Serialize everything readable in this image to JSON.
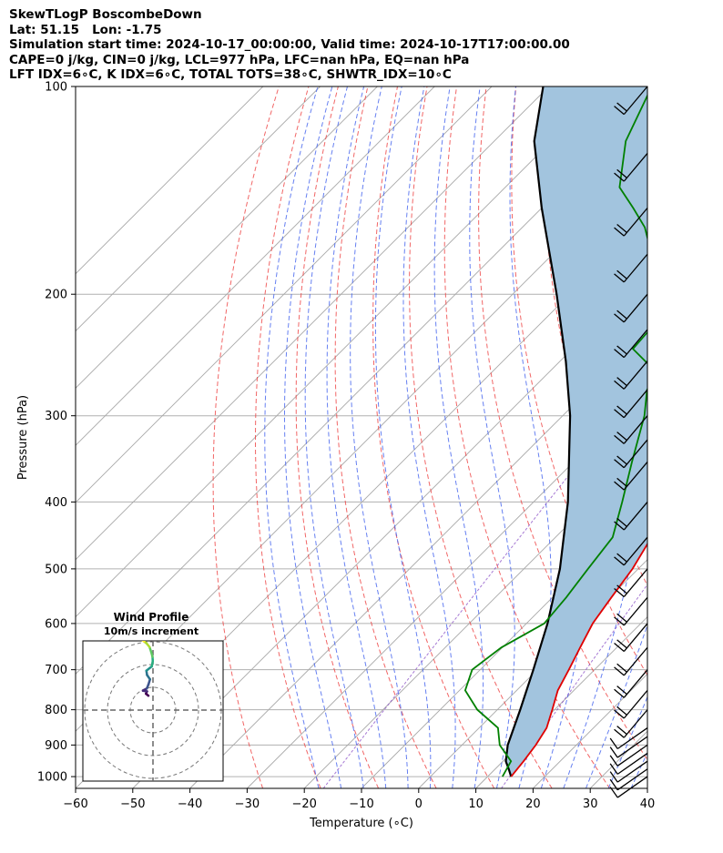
{
  "header": {
    "title": "SkewTLogP BoscombeDown",
    "location": "Lat: 51.15   Lon: -1.75",
    "times": "Simulation start time: 2024-10-17_00:00:00, Valid time: 2024-10-17T17:00:00.00",
    "params": "CAPE=0 j/kg, CIN=0 j/kg, LCL=977 hPa, LFC=nan hPa, EQ=nan hPa",
    "indices": "LFT IDX=6∘C, K IDX=6∘C, TOTAL TOTS=38∘C, SHWTR_IDX=10∘C"
  },
  "chart_data": {
    "type": "skewt",
    "xlabel": "Temperature (∘C)",
    "ylabel": "Pressure (hPa)",
    "xlim": [
      -60,
      40
    ],
    "ylim": [
      1040,
      100
    ],
    "x_ticks": [
      "−60",
      "−50",
      "−40",
      "−30",
      "−20",
      "−10",
      "0",
      "10",
      "20",
      "30",
      "40"
    ],
    "y_ticks": [
      100,
      200,
      300,
      400,
      500,
      600,
      700,
      800,
      900,
      1000
    ],
    "series": [
      {
        "color": "#e00000",
        "points": [
          [
            14.1,
            1000
          ],
          [
            13.6,
            950
          ],
          [
            12.9,
            900
          ],
          [
            11.8,
            850
          ],
          [
            9.6,
            800
          ],
          [
            7.2,
            750
          ],
          [
            5.5,
            700
          ],
          [
            3.6,
            650
          ],
          [
            1.6,
            600
          ],
          [
            0.3,
            550
          ],
          [
            -1.0,
            500
          ],
          [
            -3.2,
            450
          ],
          [
            -6.2,
            400
          ],
          [
            -11.6,
            350
          ],
          [
            -17.3,
            300
          ],
          [
            -22.8,
            270
          ],
          [
            -24.8,
            250
          ],
          [
            -25.2,
            230
          ],
          [
            -25.3,
            220
          ],
          [
            -27.8,
            210
          ],
          [
            -33.4,
            200
          ],
          [
            -37.0,
            190
          ],
          [
            -39.9,
            180
          ],
          [
            -43.5,
            170
          ],
          [
            -46.5,
            160
          ],
          [
            -49.5,
            150
          ],
          [
            -52.0,
            140
          ],
          [
            -54.3,
            130
          ],
          [
            -57.0,
            120
          ],
          [
            -58.5,
            110
          ],
          [
            -59.5,
            100
          ]
        ]
      },
      {
        "color": "#008000",
        "points": [
          [
            12.6,
            1000
          ],
          [
            11.4,
            950
          ],
          [
            6.6,
            900
          ],
          [
            3.3,
            850
          ],
          [
            -3.5,
            800
          ],
          [
            -9.0,
            750
          ],
          [
            -11.4,
            700
          ],
          [
            -10.2,
            650
          ],
          [
            -6.9,
            600
          ],
          [
            -7.6,
            550
          ],
          [
            -8.8,
            500
          ],
          [
            -10.0,
            450
          ],
          [
            -14.5,
            400
          ],
          [
            -19.8,
            350
          ],
          [
            -25.7,
            300
          ],
          [
            -29.8,
            275
          ],
          [
            -31.0,
            260
          ],
          [
            -39.4,
            240
          ],
          [
            -40.0,
            220
          ],
          [
            -42.3,
            210
          ],
          [
            -46.0,
            200
          ],
          [
            -48.0,
            190
          ],
          [
            -51.0,
            180
          ],
          [
            -54.6,
            170
          ],
          [
            -58.6,
            160
          ],
          [
            -64.0,
            150
          ],
          [
            -70.0,
            140
          ],
          [
            -77.0,
            120
          ],
          [
            -82.0,
            100
          ]
        ]
      },
      {
        "color": "#000000",
        "points": [
          [
            14.1,
            1000
          ],
          [
            12.5,
            977
          ],
          [
            10.5,
            950
          ],
          [
            8.0,
            900
          ],
          [
            4.0,
            800
          ],
          [
            -0.7,
            700
          ],
          [
            -6.3,
            600
          ],
          [
            -13.7,
            500
          ],
          [
            -24.0,
            400
          ],
          [
            -38.7,
            300
          ],
          [
            -49.0,
            250
          ],
          [
            -62.3,
            200
          ],
          [
            -80.0,
            150
          ],
          [
            -93.0,
            120
          ],
          [
            -101.0,
            100
          ]
        ]
      }
    ],
    "wind_profile": {
      "title": "Wind Profile",
      "subtitle": "10m/s increment",
      "rings_ms": [
        10,
        20,
        30
      ],
      "hodograph_uv": [
        [
          -2.0,
          6.3
        ],
        [
          -3.1,
          7.2
        ],
        [
          -2.6,
          8.2
        ],
        [
          -4.4,
          8.5
        ],
        [
          -2.7,
          9.5
        ],
        [
          -2.0,
          11.2
        ],
        [
          -1.3,
          13.5
        ],
        [
          -2.6,
          15.4
        ],
        [
          -2.9,
          17.3
        ],
        [
          -0.5,
          19.2
        ],
        [
          -0.1,
          21.5
        ],
        [
          -0.2,
          23.4
        ],
        [
          -0.8,
          25.6
        ],
        [
          -1.5,
          27.7
        ],
        [
          -2.8,
          29.3
        ],
        [
          -3.9,
          30.2
        ],
        [
          -4.6,
          30.7
        ]
      ]
    },
    "barb_pressures": [
      1000,
      975,
      950,
      925,
      900,
      875,
      850,
      800,
      750,
      700,
      650,
      600,
      550,
      500,
      450,
      400,
      350,
      325,
      300,
      275,
      250,
      225,
      200,
      175,
      150,
      125,
      100
    ]
  }
}
